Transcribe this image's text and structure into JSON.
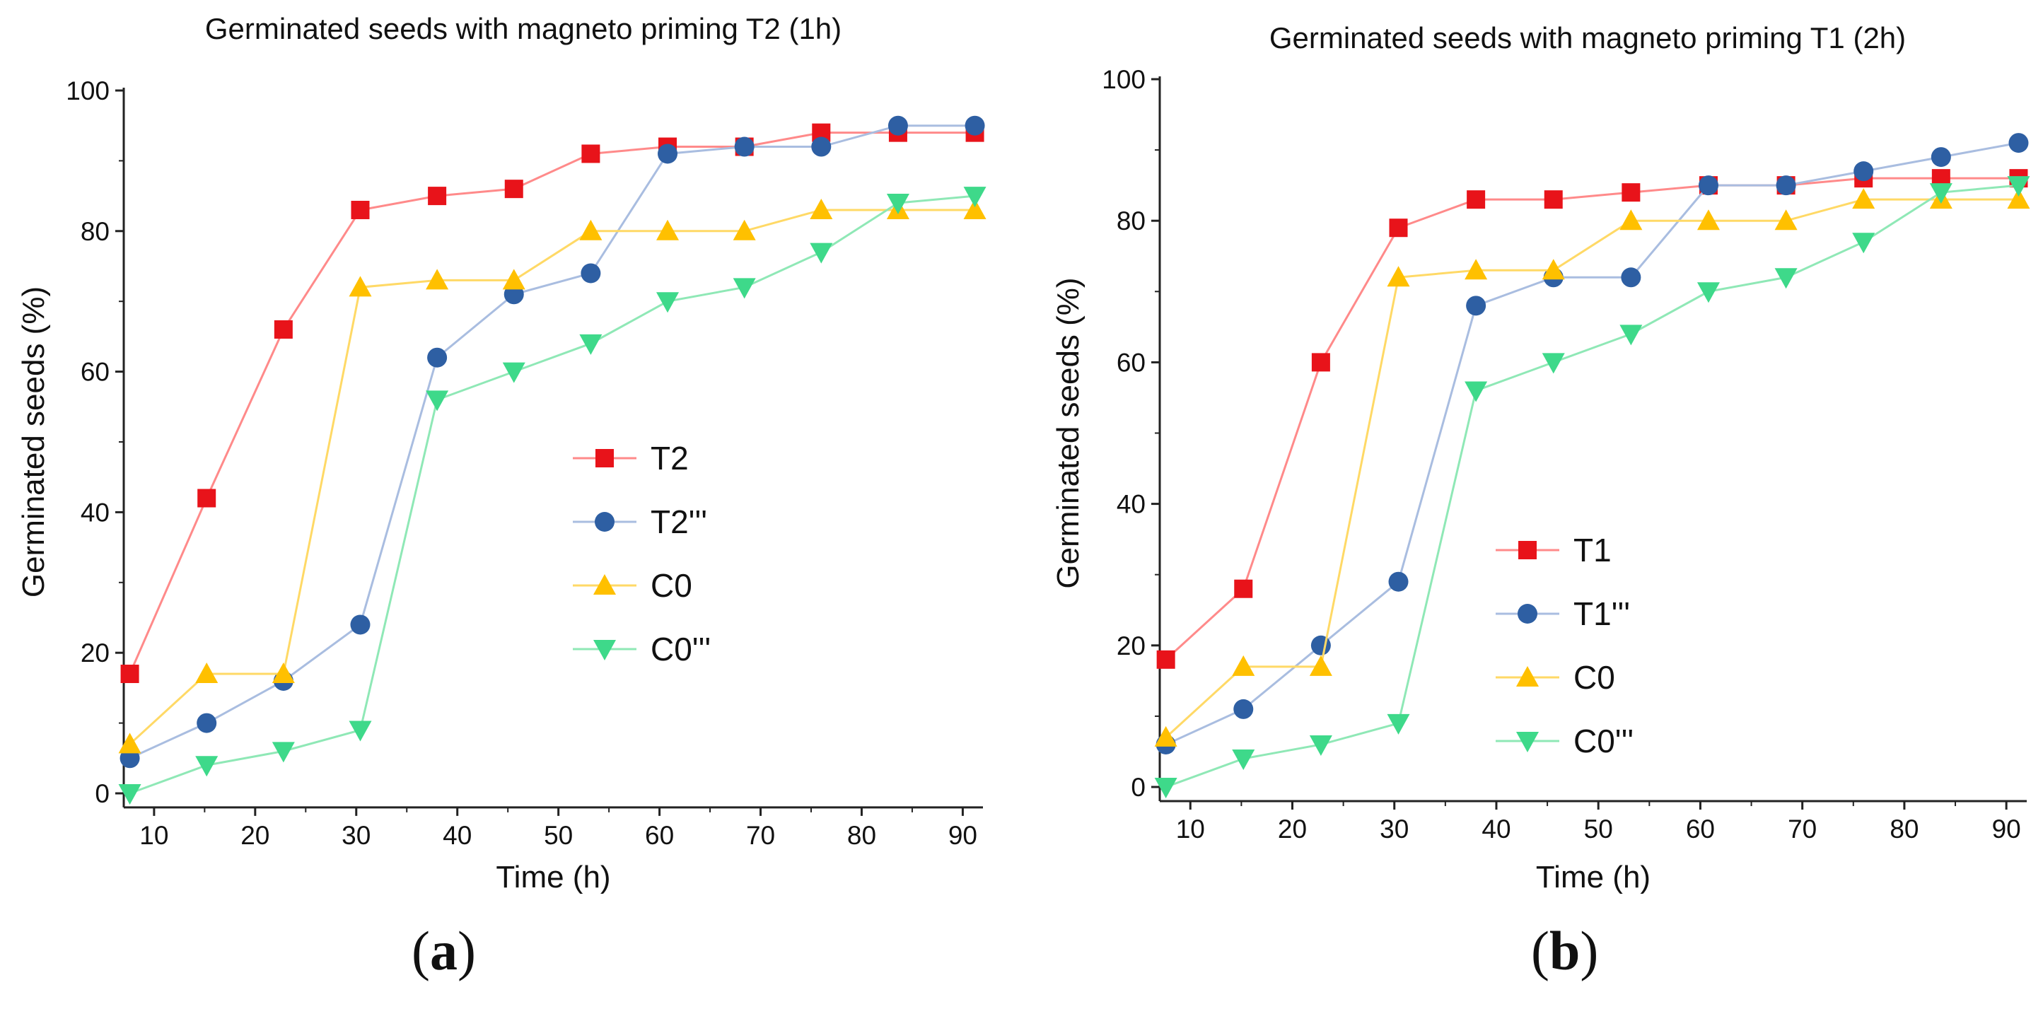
{
  "chart_data": [
    {
      "type": "line",
      "panel_label": "a",
      "title": "Germinated seeds with magneto priming T2 (1h)",
      "xlabel": "Time (h)",
      "ylabel": "Germinated seeds (%)",
      "xlim": [
        7,
        92
      ],
      "ylim": [
        -2,
        100
      ],
      "xticks": [
        10,
        20,
        30,
        40,
        50,
        60,
        70,
        80,
        90
      ],
      "yticks": [
        0,
        20,
        40,
        60,
        80,
        100
      ],
      "legend_position": "center",
      "x": [
        7.6,
        15.2,
        22.8,
        30.4,
        38,
        45.6,
        53.2,
        60.8,
        68.4,
        76,
        83.6,
        91.2
      ],
      "series": [
        {
          "name": "T2",
          "color": "#ff8a8a",
          "marker": "square",
          "marker_color": "#e8131a",
          "values": [
            17,
            42,
            66,
            83,
            85,
            86,
            91,
            92,
            92,
            94,
            94,
            94
          ]
        },
        {
          "name": "T2'''",
          "color": "#a9bde0",
          "marker": "circle",
          "marker_color": "#2e5fa3",
          "values": [
            5,
            10,
            16,
            24,
            62,
            71,
            74,
            91,
            92,
            92,
            95,
            95
          ]
        },
        {
          "name": "C0",
          "color": "#ffd966",
          "marker": "triangle-up",
          "marker_color": "#ffc000",
          "values": [
            7,
            17,
            17,
            72,
            73,
            73,
            80,
            80,
            80,
            83,
            83,
            83
          ]
        },
        {
          "name": "C0'''",
          "color": "#8fe8b6",
          "marker": "triangle-down",
          "marker_color": "#3ed98a",
          "values": [
            0,
            4,
            6,
            9,
            56,
            60,
            64,
            70,
            72,
            77,
            84,
            85
          ]
        }
      ]
    },
    {
      "type": "line",
      "panel_label": "b",
      "title": "Germinated seeds with magneto priming T1 (2h)",
      "xlabel": "Time (h)",
      "ylabel": "Germinated seeds (%)",
      "xlim": [
        7,
        92
      ],
      "ylim": [
        -2,
        100
      ],
      "xticks": [
        10,
        20,
        30,
        40,
        50,
        60,
        70,
        80,
        90
      ],
      "yticks": [
        0,
        20,
        40,
        60,
        80,
        100
      ],
      "legend_position": "center-left",
      "x": [
        7.6,
        15.2,
        22.8,
        30.4,
        38,
        45.6,
        53.2,
        60.8,
        68.4,
        76,
        83.6,
        91.2
      ],
      "series": [
        {
          "name": "T1",
          "color": "#ff8a8a",
          "marker": "square",
          "marker_color": "#e8131a",
          "values": [
            18,
            28,
            60,
            79,
            83,
            83,
            84,
            85,
            85,
            86,
            86,
            86
          ]
        },
        {
          "name": "T1'''",
          "color": "#a9bde0",
          "marker": "circle",
          "marker_color": "#2e5fa3",
          "values": [
            6,
            11,
            20,
            29,
            68,
            72,
            72,
            85,
            85,
            87,
            89,
            91
          ]
        },
        {
          "name": "C0",
          "color": "#ffd966",
          "marker": "triangle-up",
          "marker_color": "#ffc000",
          "values": [
            7,
            17,
            17,
            72,
            73,
            73,
            80,
            80,
            80,
            83,
            83,
            83
          ]
        },
        {
          "name": "C0'''",
          "color": "#8fe8b6",
          "marker": "triangle-down",
          "marker_color": "#3ed98a",
          "values": [
            0,
            4,
            6,
            9,
            56,
            60,
            64,
            70,
            72,
            77,
            84,
            85
          ]
        }
      ]
    }
  ]
}
